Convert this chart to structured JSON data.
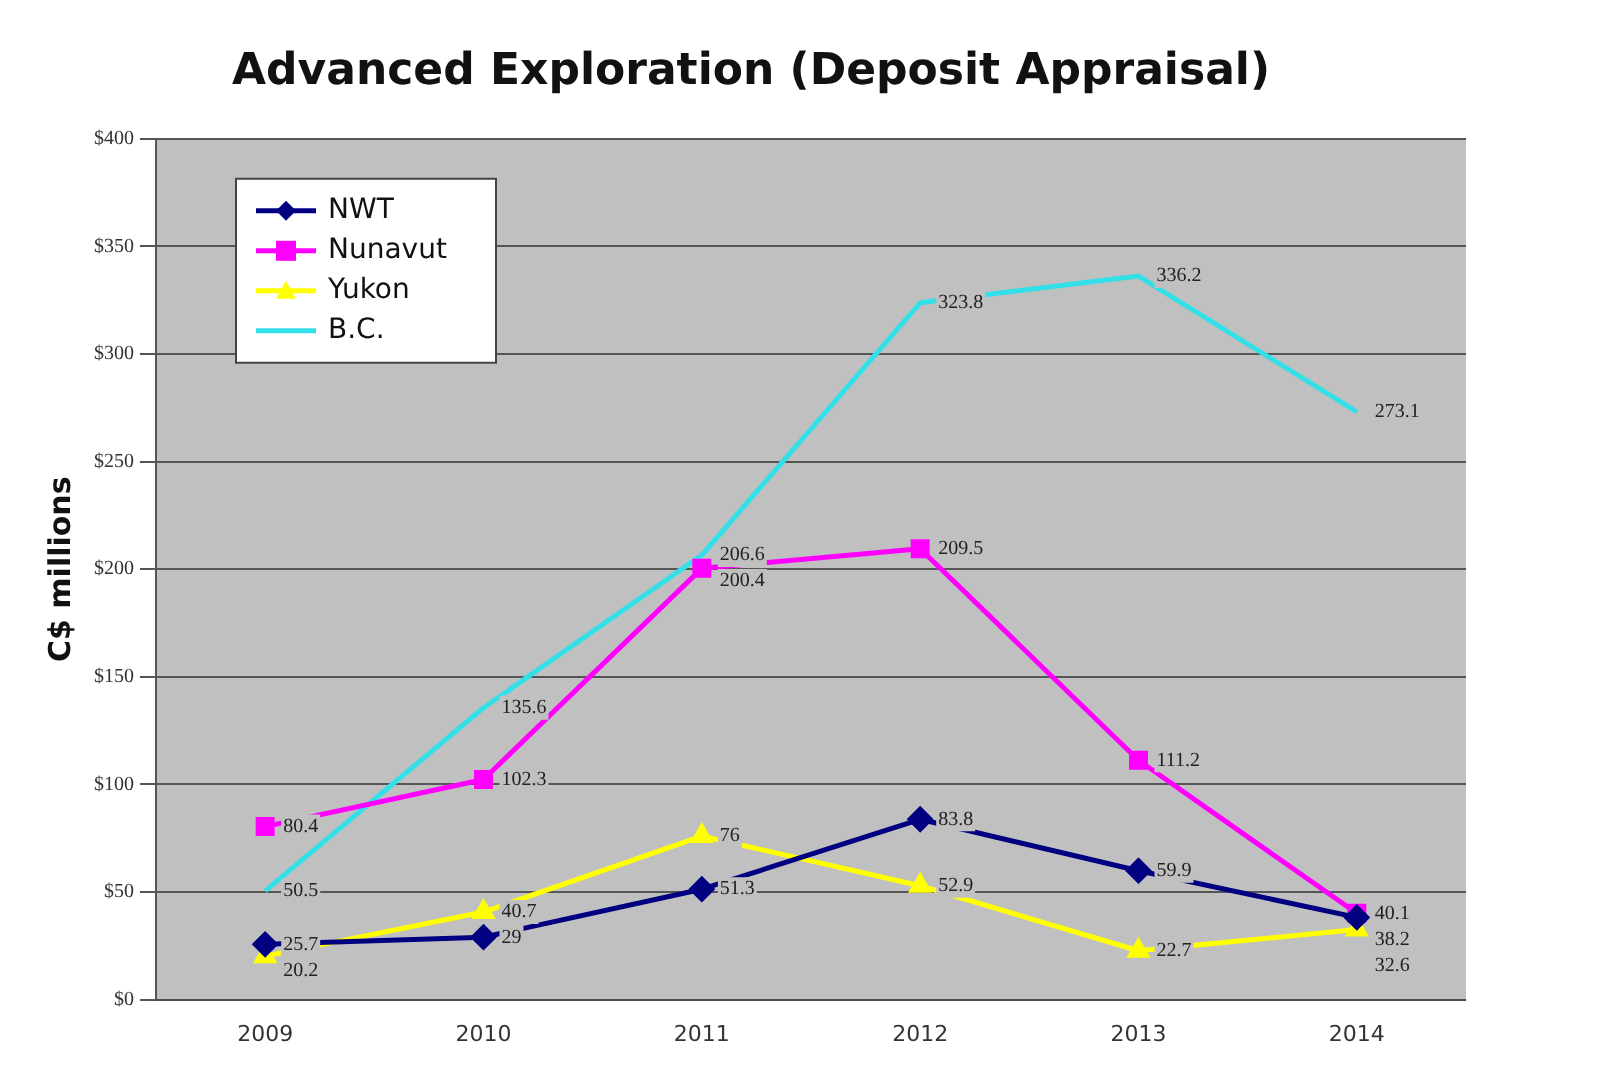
{
  "chart_data": {
    "type": "line",
    "title": "Advanced Exploration (Deposit Appraisal)",
    "ylabel": "C$ millions",
    "categories": [
      "2009",
      "2010",
      "2011",
      "2012",
      "2013",
      "2014"
    ],
    "series": [
      {
        "name": "NWT",
        "color": "#000080",
        "marker": "diamond",
        "values": [
          25.7,
          29,
          51.3,
          83.8,
          59.9,
          38.2
        ]
      },
      {
        "name": "Nunavut",
        "color": "#ff00ff",
        "marker": "square",
        "values": [
          80.4,
          102.3,
          200.4,
          209.5,
          111.2,
          40.1
        ]
      },
      {
        "name": "Yukon",
        "color": "#ffff00",
        "marker": "triangle",
        "values": [
          20.2,
          40.7,
          76,
          52.9,
          22.7,
          32.6
        ]
      },
      {
        "name": "B.C.",
        "color": "#33e0e8",
        "marker": "none",
        "values": [
          50.5,
          135.6,
          206.6,
          323.8,
          336.2,
          273.1
        ]
      }
    ],
    "ylim": [
      0,
      400
    ],
    "yticks": [
      {
        "value": 0,
        "label": "$0"
      },
      {
        "value": 50,
        "label": "$50"
      },
      {
        "value": 100,
        "label": "$100"
      },
      {
        "value": 150,
        "label": "$150"
      },
      {
        "value": 200,
        "label": "$200"
      },
      {
        "value": 250,
        "label": "$250"
      },
      {
        "value": 300,
        "label": "$300"
      },
      {
        "value": 350,
        "label": "$350"
      },
      {
        "value": 400,
        "label": "$400"
      }
    ],
    "grid": "y",
    "legend": "top left",
    "data_labels": true
  }
}
